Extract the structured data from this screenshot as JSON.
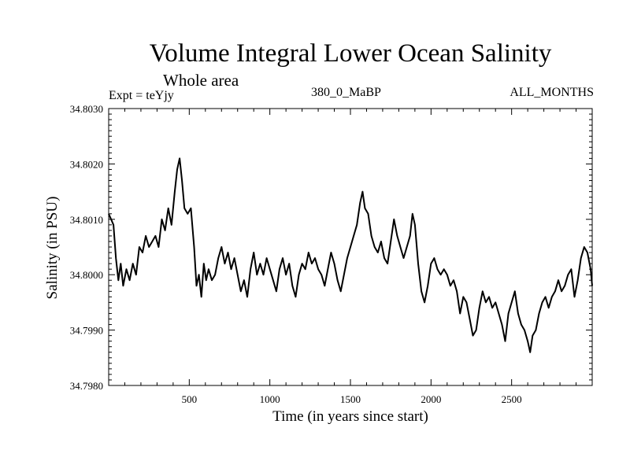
{
  "chart_data": {
    "type": "line",
    "title": "Volume Integral Lower Ocean Salinity",
    "subtitle": "Whole area",
    "annotations": {
      "experiment": "Expt = teYjy",
      "period": "380_0_MaBP",
      "months": "ALL_MONTHS"
    },
    "xlabel": "Time (in years since start)",
    "ylabel": "Salinity (in PSU)",
    "xlim": [
      0,
      3000
    ],
    "ylim": [
      34.798,
      34.803
    ],
    "x_ticks": [
      500,
      1000,
      1500,
      2000,
      2500
    ],
    "x_tick_labels": [
      "500",
      "1000",
      "1500",
      "2000",
      "2500"
    ],
    "x_minor_step": 100,
    "y_ticks": [
      34.798,
      34.799,
      34.8,
      34.801,
      34.802,
      34.803
    ],
    "y_tick_labels": [
      "34.7980",
      "34.7990",
      "34.8000",
      "34.8010",
      "34.8020",
      "34.8030"
    ],
    "y_minor_step": 0.0001,
    "grid": false,
    "legend": "none",
    "series": [
      {
        "name": "Salinity",
        "color": "#000000",
        "x": [
          0,
          15,
          30,
          45,
          60,
          75,
          90,
          110,
          130,
          150,
          170,
          190,
          210,
          230,
          250,
          270,
          290,
          310,
          330,
          350,
          370,
          390,
          410,
          425,
          440,
          455,
          470,
          490,
          510,
          530,
          545,
          560,
          575,
          590,
          605,
          620,
          640,
          660,
          680,
          700,
          720,
          740,
          760,
          780,
          800,
          820,
          840,
          860,
          880,
          900,
          920,
          940,
          960,
          980,
          1000,
          1020,
          1040,
          1060,
          1080,
          1100,
          1120,
          1140,
          1160,
          1180,
          1200,
          1220,
          1240,
          1260,
          1280,
          1300,
          1320,
          1340,
          1360,
          1380,
          1400,
          1420,
          1440,
          1460,
          1480,
          1500,
          1520,
          1540,
          1560,
          1575,
          1590,
          1610,
          1630,
          1650,
          1670,
          1690,
          1710,
          1730,
          1750,
          1770,
          1790,
          1810,
          1830,
          1850,
          1870,
          1885,
          1900,
          1920,
          1940,
          1960,
          1980,
          2000,
          2020,
          2040,
          2060,
          2080,
          2100,
          2120,
          2140,
          2160,
          2180,
          2200,
          2220,
          2240,
          2260,
          2280,
          2300,
          2320,
          2340,
          2360,
          2380,
          2400,
          2420,
          2440,
          2460,
          2480,
          2500,
          2520,
          2540,
          2560,
          2580,
          2600,
          2615,
          2630,
          2650,
          2670,
          2690,
          2710,
          2730,
          2750,
          2770,
          2790,
          2810,
          2830,
          2850,
          2870,
          2890,
          2910,
          2930,
          2950,
          2970,
          2990,
          3000
        ],
        "y": [
          34.8011,
          34.801,
          34.8009,
          34.8003,
          34.7999,
          34.8002,
          34.7998,
          34.8001,
          34.7999,
          34.8002,
          34.8,
          34.8005,
          34.8004,
          34.8007,
          34.8005,
          34.8006,
          34.8007,
          34.8005,
          34.801,
          34.8008,
          34.8012,
          34.8009,
          34.8015,
          34.8019,
          34.8021,
          34.8017,
          34.8012,
          34.8011,
          34.8012,
          34.8005,
          34.7998,
          34.8,
          34.7996,
          34.8002,
          34.7999,
          34.8001,
          34.7999,
          34.8,
          34.8003,
          34.8005,
          34.8002,
          34.8004,
          34.8001,
          34.8003,
          34.8,
          34.7997,
          34.7999,
          34.7996,
          34.8001,
          34.8004,
          34.8,
          34.8002,
          34.8,
          34.8003,
          34.8001,
          34.7999,
          34.7997,
          34.8001,
          34.8003,
          34.8,
          34.8002,
          34.7998,
          34.7996,
          34.8,
          34.8002,
          34.8001,
          34.8004,
          34.8002,
          34.8003,
          34.8001,
          34.8,
          34.7998,
          34.8001,
          34.8004,
          34.8002,
          34.7999,
          34.7997,
          34.8,
          34.8003,
          34.8005,
          34.8007,
          34.8009,
          34.8013,
          34.8015,
          34.8012,
          34.8011,
          34.8007,
          34.8005,
          34.8004,
          34.8006,
          34.8003,
          34.8002,
          34.8006,
          34.801,
          34.8007,
          34.8005,
          34.8003,
          34.8005,
          34.8007,
          34.8011,
          34.8009,
          34.8002,
          34.7997,
          34.7995,
          34.7998,
          34.8002,
          34.8003,
          34.8001,
          34.8,
          34.8001,
          34.8,
          34.7998,
          34.7999,
          34.7997,
          34.7993,
          34.7996,
          34.7995,
          34.7992,
          34.7989,
          34.799,
          34.7994,
          34.7997,
          34.7995,
          34.7996,
          34.7994,
          34.7995,
          34.7993,
          34.7991,
          34.7988,
          34.7993,
          34.7995,
          34.7997,
          34.7993,
          34.7991,
          34.799,
          34.7988,
          34.7986,
          34.7989,
          34.799,
          34.7993,
          34.7995,
          34.7996,
          34.7994,
          34.7996,
          34.7997,
          34.7999,
          34.7997,
          34.7998,
          34.8,
          34.8001,
          34.7996,
          34.7999,
          34.8003,
          34.8005,
          34.8004,
          34.8001,
          34.7998
        ]
      }
    ]
  }
}
